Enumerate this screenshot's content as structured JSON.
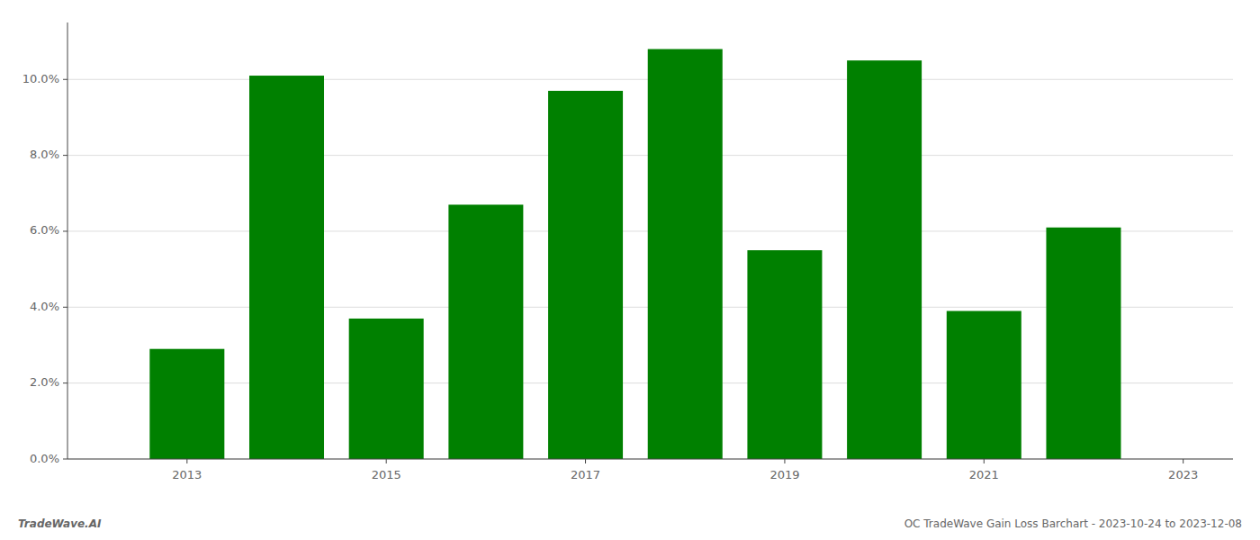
{
  "chart_data": {
    "type": "bar",
    "x": [
      2013,
      2014,
      2015,
      2016,
      2017,
      2018,
      2019,
      2020,
      2021,
      2022
    ],
    "values": [
      0.029,
      0.101,
      0.037,
      0.067,
      0.097,
      0.108,
      0.055,
      0.105,
      0.039,
      0.061
    ],
    "color": "#008000",
    "ylim": [
      0,
      0.115
    ],
    "yticks": [
      {
        "value": 0.0,
        "label": "0.0%"
      },
      {
        "value": 0.02,
        "label": "2.0%"
      },
      {
        "value": 0.04,
        "label": "4.0%"
      },
      {
        "value": 0.06,
        "label": "6.0%"
      },
      {
        "value": 0.08,
        "label": "8.0%"
      },
      {
        "value": 0.1,
        "label": "10.0%"
      }
    ],
    "xlim": [
      2011.8,
      2023.5
    ],
    "xticks": [
      2013,
      2015,
      2017,
      2019,
      2021,
      2023
    ],
    "grid": true,
    "annotations": [
      "TradeWave.AI",
      "OC TradeWave Gain Loss Barchart - 2023-10-24 to 2023-12-08"
    ]
  }
}
